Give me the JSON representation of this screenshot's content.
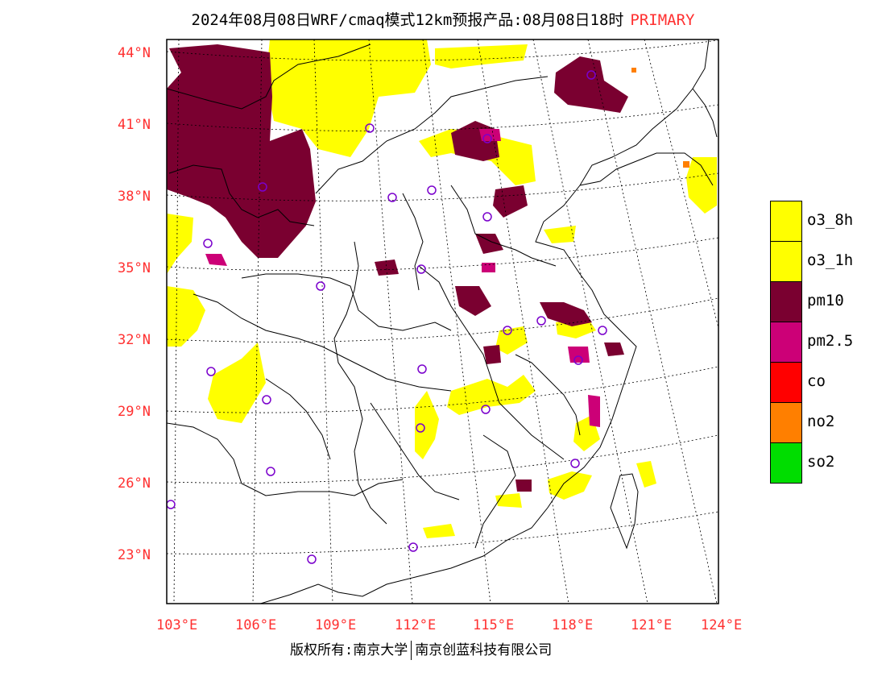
{
  "title": {
    "main": "2024年08月08日WRF/cmaq模式12km预报产品:08月08日18时",
    "tag": "PRIMARY"
  },
  "colors": {
    "o3_8h": "#ffff00",
    "o3_1h": "#ffff00",
    "pm10": "#7a0030",
    "pm2_5": "#cc0077",
    "co": "#ff0000",
    "no2": "#ff7f00",
    "so2": "#00dd00",
    "station": "#7a00cc",
    "axis_label": "#ff3030"
  },
  "latitude_labels": [
    "44°N",
    "41°N",
    "38°N",
    "35°N",
    "32°N",
    "29°N",
    "26°N",
    "23°N"
  ],
  "longitude_labels": [
    "103°E",
    "106°E",
    "109°E",
    "112°E",
    "115°E",
    "118°E",
    "121°E",
    "124°E"
  ],
  "legend": {
    "items": [
      {
        "key": "o3_8h",
        "label": "o3_8h"
      },
      {
        "key": "o3_1h",
        "label": "o3_1h"
      },
      {
        "key": "pm10",
        "label": "pm10"
      },
      {
        "key": "pm2_5",
        "label": "pm2.5"
      },
      {
        "key": "co",
        "label": "co"
      },
      {
        "key": "no2",
        "label": "no2"
      },
      {
        "key": "so2",
        "label": "so2"
      }
    ]
  },
  "footer": {
    "left": "版权所有:南京大学",
    "right": "南京创蓝科技有限公司"
  }
}
